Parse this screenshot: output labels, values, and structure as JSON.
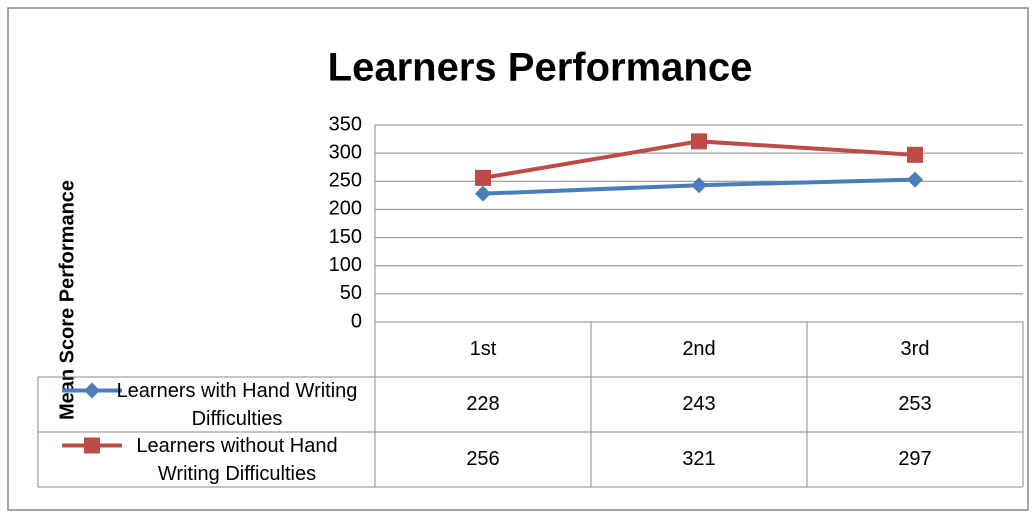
{
  "chart_data": {
    "type": "line",
    "title": "Learners Performance",
    "y_label": "Mean Score Performance",
    "categories": [
      "1st",
      "2nd",
      "3rd"
    ],
    "series": [
      {
        "name": "Learners with Hand Writing Difficulties",
        "color": "#4a7ebb",
        "marker": "diamond",
        "values": [
          228,
          243,
          253
        ]
      },
      {
        "name": "Learners without Hand Writing Difficulties",
        "color": "#be4b48",
        "marker": "square",
        "values": [
          256,
          321,
          297
        ]
      }
    ],
    "ylim": [
      0,
      350
    ],
    "yticks": [
      0,
      50,
      100,
      150,
      200,
      250,
      300,
      350
    ],
    "grid": true,
    "data_table": true
  }
}
